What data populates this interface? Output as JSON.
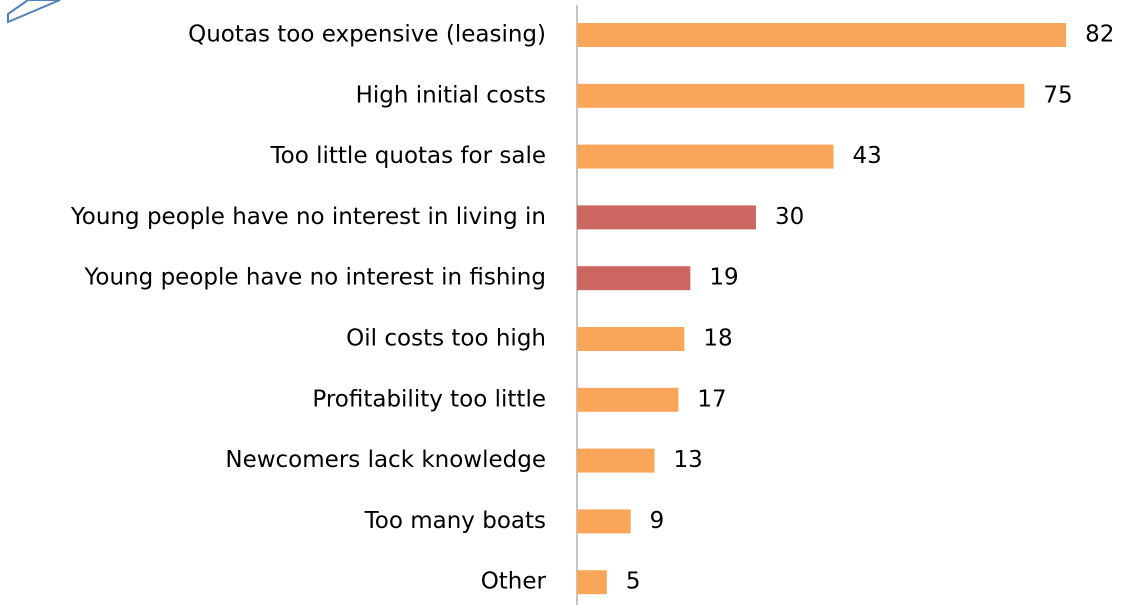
{
  "chart_data": {
    "type": "hbar",
    "categories": [
      "Quotas too expensive (leasing)",
      "High initial costs",
      "Too little quotas for sale",
      "Young people have no interest in living in",
      "Young people have no interest in fishing",
      "Oil costs too high",
      "Profitability too little",
      "Newcomers lack knowledge",
      "Too many boats",
      "Other"
    ],
    "values": [
      82,
      75,
      43,
      30,
      19,
      18,
      17,
      13,
      9,
      5
    ],
    "colors": [
      "#f9a65a",
      "#f9a65a",
      "#f9a65a",
      "#cc6660",
      "#cc6660",
      "#f9a65a",
      "#f9a65a",
      "#f9a65a",
      "#f9a65a",
      "#f9a65a"
    ],
    "xlim": [
      0,
      85
    ]
  }
}
